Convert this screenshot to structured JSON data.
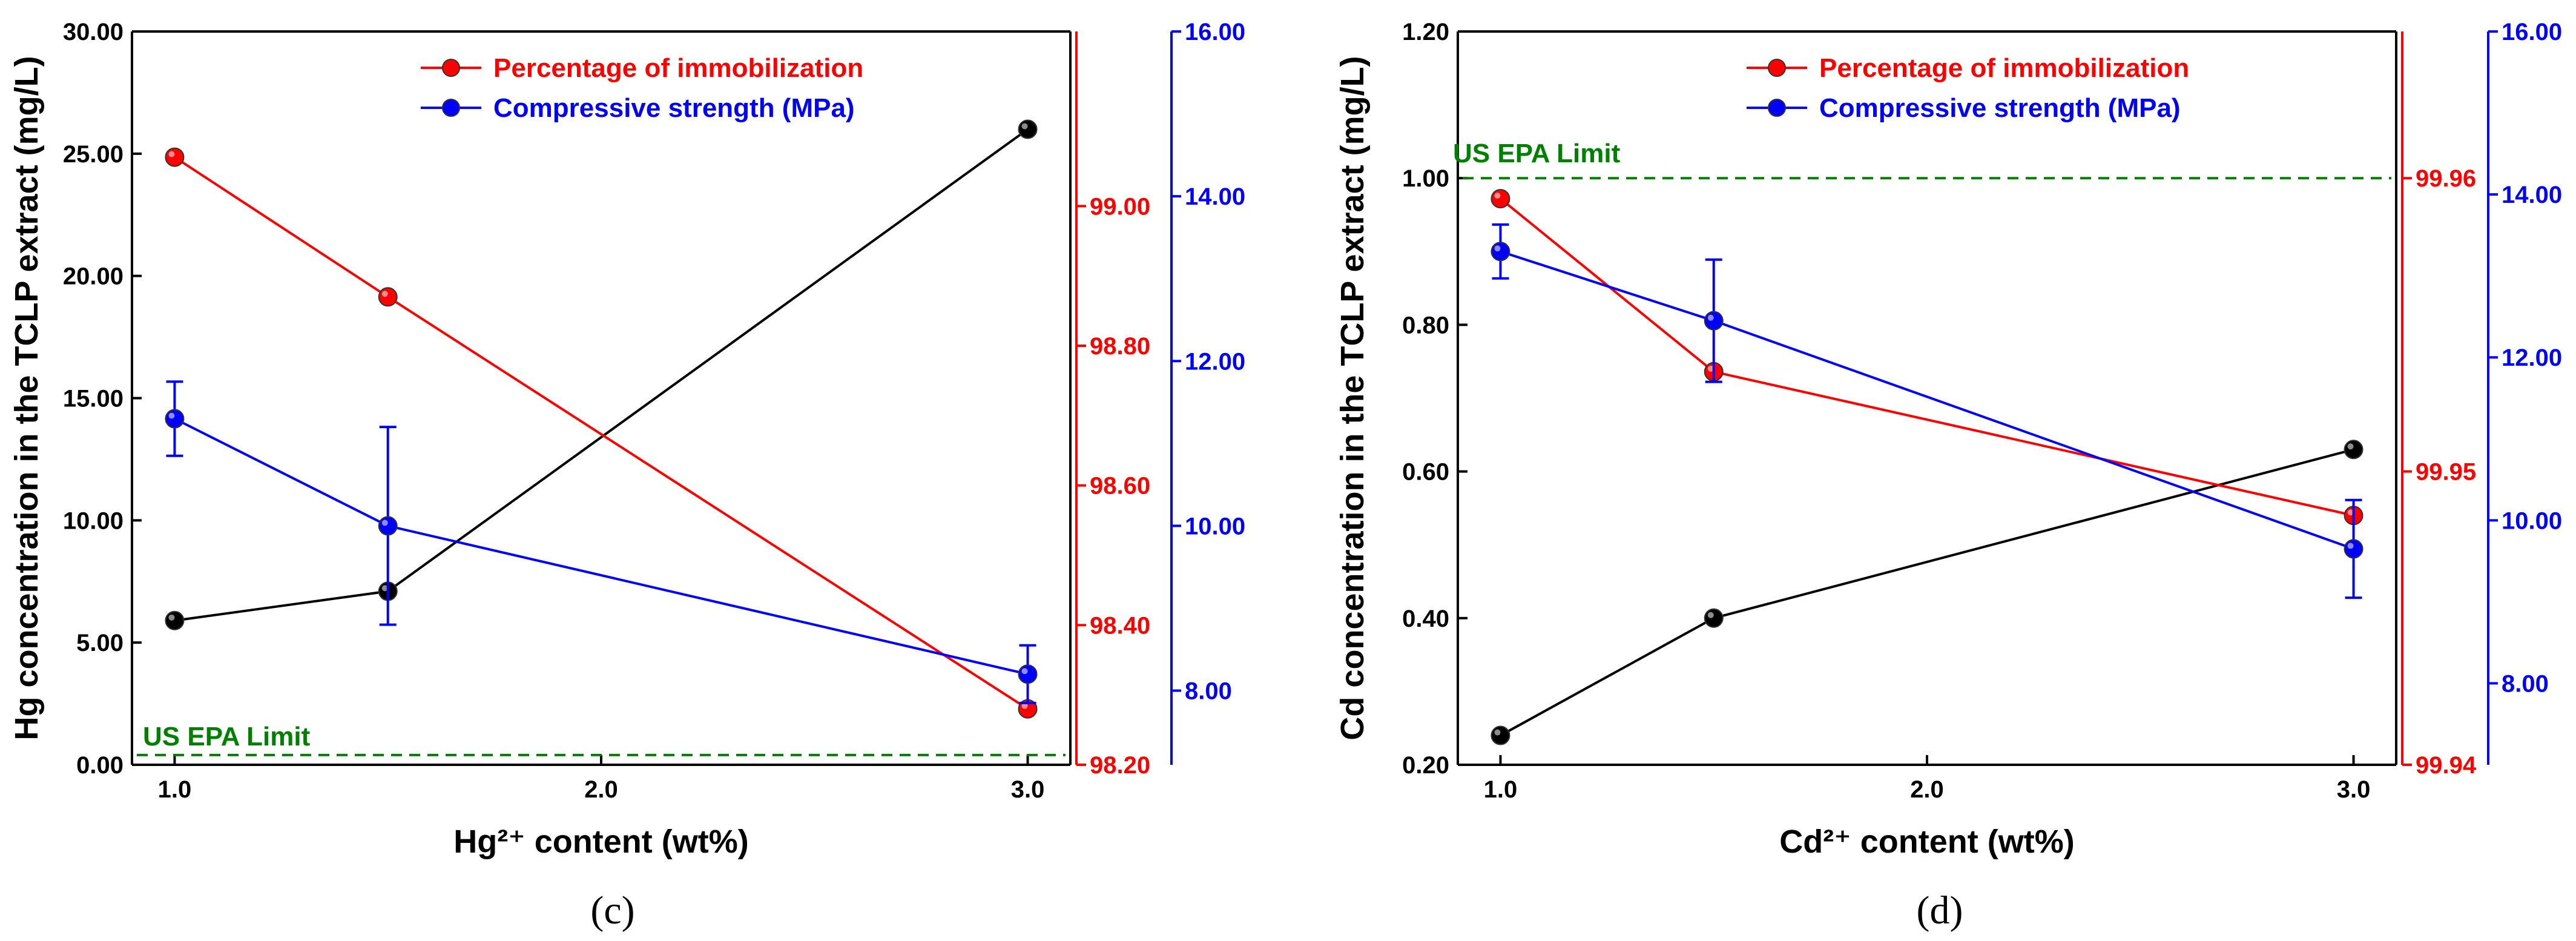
{
  "colors": {
    "black_series": "#000000",
    "immobilization": "#ff0000",
    "strength": "#0000ff",
    "epa_limit": "#008000",
    "axis": "#000000"
  },
  "chart_data": [
    {
      "panel_label": "(c)",
      "type": "line",
      "xlabel": "Hg²⁺ content (wt%)",
      "ylabel": "Hg concentration in the TCLP extract (mg/L)",
      "xlim": [
        0.9,
        3.1
      ],
      "x_ticks": [
        1.0,
        2.0,
        3.0
      ],
      "x_tick_labels": [
        "1.0",
        "2.0",
        "3.0"
      ],
      "y_left": {
        "lim": [
          0,
          30
        ],
        "ticks": [
          0,
          5,
          10,
          15,
          20,
          25,
          30
        ],
        "tick_labels": [
          "0.00",
          "5.00",
          "10.00",
          "15.00",
          "20.00",
          "25.00",
          "30.00"
        ]
      },
      "y_right1": {
        "lim": [
          98.2,
          99.25
        ],
        "ticks": [
          98.2,
          98.4,
          98.6,
          98.8,
          99.0
        ],
        "tick_labels": [
          "98.20",
          "98.40",
          "98.60",
          "98.80",
          "99.00"
        ]
      },
      "y_right2": {
        "lim": [
          7.1,
          16.0
        ],
        "ticks": [
          8,
          10,
          12,
          14,
          16
        ],
        "tick_labels": [
          "8.00",
          "10.00",
          "12.00",
          "14.00",
          "16.00"
        ]
      },
      "legend_position": "top-center",
      "legend": [
        "Percentage of immobilization",
        "Compressive strength (MPa)"
      ],
      "epa_limit": {
        "label": "US EPA Limit",
        "y": 0.4
      },
      "series": [
        {
          "axis": "left",
          "color_key": "black_series",
          "x": [
            1.0,
            1.5,
            3.0
          ],
          "y": [
            5.9,
            7.1,
            26.0
          ]
        },
        {
          "name": "Percentage of immobilization",
          "axis": "right1",
          "color_key": "immobilization",
          "x": [
            1.0,
            1.5,
            3.0
          ],
          "y": [
            99.07,
            98.87,
            98.28
          ]
        },
        {
          "name": "Compressive strength (MPa)",
          "axis": "right2",
          "color_key": "strength",
          "x": [
            1.0,
            1.5,
            3.0
          ],
          "y": [
            11.3,
            10.0,
            8.2
          ],
          "error": [
            0.45,
            1.2,
            0.35
          ]
        }
      ]
    },
    {
      "panel_label": "(d)",
      "type": "line",
      "xlabel": "Cd²⁺ content (wt%)",
      "ylabel": "Cd concentration in the TCLP extract (mg/L)",
      "xlim": [
        0.9,
        3.1
      ],
      "x_ticks": [
        1.0,
        2.0,
        3.0
      ],
      "x_tick_labels": [
        "1.0",
        "2.0",
        "3.0"
      ],
      "y_left": {
        "lim": [
          0.2,
          1.2
        ],
        "ticks": [
          0.2,
          0.4,
          0.6,
          0.8,
          1.0,
          1.2
        ],
        "tick_labels": [
          "0.20",
          "0.40",
          "0.60",
          "0.80",
          "1.00",
          "1.20"
        ]
      },
      "y_right1": {
        "lim": [
          99.94,
          99.965
        ],
        "ticks": [
          99.94,
          99.95,
          99.96
        ],
        "tick_labels": [
          "99.94",
          "99.95",
          "99.96"
        ]
      },
      "y_right2": {
        "lim": [
          7.0,
          16.0
        ],
        "ticks": [
          8,
          10,
          12,
          14,
          16
        ],
        "tick_labels": [
          "8.00",
          "10.00",
          "12.00",
          "14.00",
          "16.00"
        ]
      },
      "legend_position": "top-center",
      "legend": [
        "Percentage of immobilization",
        "Compressive strength (MPa)"
      ],
      "epa_limit": {
        "label": "US EPA Limit",
        "y": 1.0
      },
      "series": [
        {
          "axis": "left",
          "color_key": "black_series",
          "x": [
            1.0,
            1.5,
            3.0
          ],
          "y": [
            0.24,
            0.4,
            0.63
          ]
        },
        {
          "name": "Percentage of immobilization",
          "axis": "right1",
          "color_key": "immobilization",
          "x": [
            1.0,
            1.5,
            3.0
          ],
          "y": [
            99.9593,
            99.9534,
            99.9485
          ]
        },
        {
          "name": "Compressive strength (MPa)",
          "axis": "right2",
          "color_key": "strength",
          "x": [
            1.0,
            1.5,
            3.0
          ],
          "y": [
            13.3,
            12.45,
            9.65
          ],
          "error": [
            0.33,
            0.75,
            0.6
          ]
        }
      ]
    }
  ]
}
